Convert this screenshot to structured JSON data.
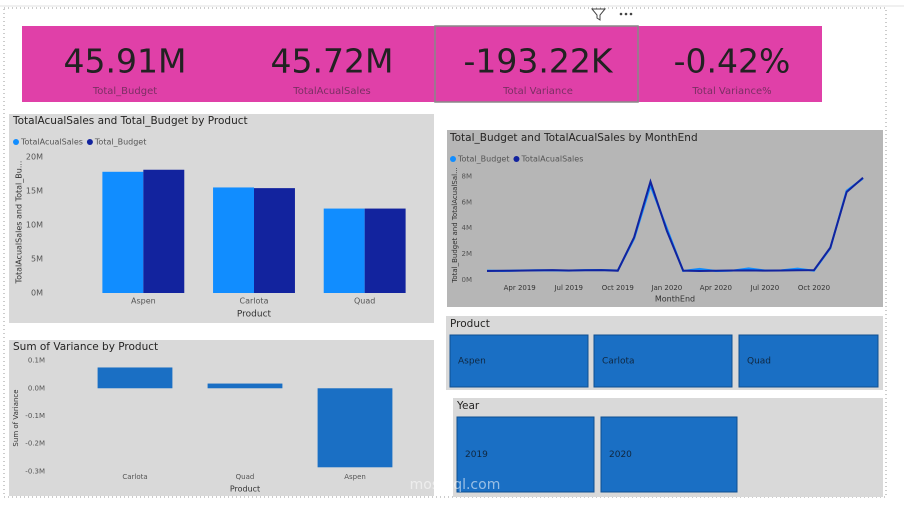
{
  "cards": [
    {
      "value": "45.91M",
      "label": "Total_Budget"
    },
    {
      "value": "45.72M",
      "label": "TotalAcualSales"
    },
    {
      "value": "-193.22K",
      "label": "Total Variance"
    },
    {
      "value": "-0.42%",
      "label": "Total Variance%"
    }
  ],
  "chart_data": [
    {
      "type": "bar",
      "title": "TotalAcualSales and Total_Budget by Product",
      "categories": [
        "Aspen",
        "Carlota",
        "Quad"
      ],
      "series": [
        {
          "name": "TotalAcualSales",
          "color": "#118dff",
          "values": [
            17800000,
            15500000,
            12400000
          ]
        },
        {
          "name": "Total_Budget",
          "color": "#12239e",
          "values": [
            18100000,
            15400000,
            12400000
          ]
        }
      ],
      "x_label": "Product",
      "y_label": "TotalAcualSales and Total_Bu...",
      "ylim": [
        0,
        21000000
      ],
      "yticks": [
        {
          "value": 0,
          "label": "0M"
        },
        {
          "value": 5000000,
          "label": "5M"
        },
        {
          "value": 10000000,
          "label": "10M"
        },
        {
          "value": 15000000,
          "label": "15M"
        },
        {
          "value": 20000000,
          "label": "20M"
        }
      ]
    },
    {
      "type": "line",
      "title": "Total_Budget and TotalAcualSales by MonthEnd",
      "x": [
        "2019-02",
        "2019-03",
        "2019-04",
        "2019-05",
        "2019-06",
        "2019-07",
        "2019-08",
        "2019-09",
        "2019-10",
        "2019-11",
        "2019-12",
        "2020-01",
        "2020-02",
        "2020-03",
        "2020-04",
        "2020-05",
        "2020-06",
        "2020-07",
        "2020-08",
        "2020-09",
        "2020-10",
        "2020-11",
        "2020-12",
        "2021-01"
      ],
      "series": [
        {
          "name": "Total_Budget",
          "color": "#118dff",
          "values": [
            720000,
            700000,
            730000,
            750000,
            740000,
            720000,
            760000,
            770000,
            730000,
            3200000,
            7300000,
            4000000,
            700000,
            860000,
            700000,
            720000,
            900000,
            730000,
            740000,
            880000,
            720000,
            2450000,
            6900000,
            7850000
          ]
        },
        {
          "name": "TotalAcualSales",
          "color": "#12239e",
          "values": [
            700000,
            710000,
            720000,
            740000,
            760000,
            730000,
            750000,
            760000,
            720000,
            3300000,
            7600000,
            3800000,
            720000,
            700000,
            710000,
            730000,
            740000,
            720000,
            730000,
            750000,
            760000,
            2500000,
            6800000,
            7900000
          ]
        }
      ],
      "x_label": "MonthEnd",
      "y_label": "Total_Budget and TotalAcualSal...",
      "ylim": [
        0,
        8500000
      ],
      "yticks": [
        {
          "value": 0,
          "label": "0M"
        },
        {
          "value": 2000000,
          "label": "2M"
        },
        {
          "value": 4000000,
          "label": "4M"
        },
        {
          "value": 6000000,
          "label": "6M"
        },
        {
          "value": 8000000,
          "label": "8M"
        }
      ],
      "xticks": [
        {
          "value": "2019-04",
          "label": "Apr 2019"
        },
        {
          "value": "2019-07",
          "label": "Jul 2019"
        },
        {
          "value": "2019-10",
          "label": "Oct 2019"
        },
        {
          "value": "2020-01",
          "label": "Jan 2020"
        },
        {
          "value": "2020-04",
          "label": "Apr 2020"
        },
        {
          "value": "2020-07",
          "label": "Jul 2020"
        },
        {
          "value": "2020-10",
          "label": "Oct 2020"
        }
      ]
    },
    {
      "type": "bar",
      "title": "Sum of Variance by Product",
      "categories": [
        "Carlota",
        "Quad",
        "Aspen"
      ],
      "values": [
        75000,
        17000,
        -285000
      ],
      "color": "#1a6fc4",
      "x_label": "Product",
      "y_label": "Sum of Variance",
      "ylim": [
        -320000,
        120000
      ],
      "yticks": [
        {
          "value": 100000,
          "label": "0.1M"
        },
        {
          "value": 0,
          "label": "0.0M"
        },
        {
          "value": -100000,
          "label": "-0.1M"
        },
        {
          "value": -200000,
          "label": "-0.2M"
        },
        {
          "value": -300000,
          "label": "-0.3M"
        }
      ]
    }
  ],
  "slicers": [
    {
      "title": "Product",
      "items": [
        "Aspen",
        "Carlota",
        "Quad"
      ]
    },
    {
      "title": "Year",
      "items": [
        "2019",
        "2020"
      ]
    }
  ],
  "watermark": "mostaql.com"
}
